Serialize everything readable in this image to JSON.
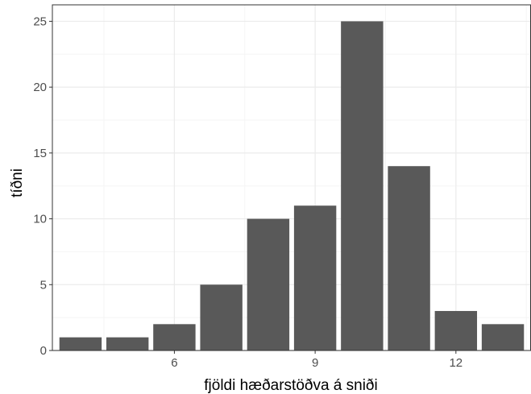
{
  "chart_data": {
    "type": "bar",
    "x": [
      4,
      5,
      6,
      7,
      8,
      9,
      10,
      11,
      12,
      13
    ],
    "values": [
      1,
      1,
      2,
      5,
      10,
      11,
      25,
      14,
      3,
      2
    ],
    "xlabel": "fjöldi hæðarstöðva á sniði",
    "ylabel": "tíðni",
    "xlim": [
      3.4,
      13.6
    ],
    "ylim": [
      0,
      26.25
    ],
    "xticks": [
      6,
      9,
      12
    ],
    "xtick_labels": [
      "6",
      "9",
      "12"
    ],
    "yticks": [
      0,
      5,
      10,
      15,
      20,
      25
    ],
    "ytick_labels": [
      "0",
      "5",
      "10",
      "15",
      "20",
      "25"
    ],
    "grid": true,
    "legend": "none",
    "colors": {
      "bar": "#595959",
      "grid_major": "#ebebeb",
      "grid_minor": "#f5f5f5",
      "panel_border": "#333333",
      "tick_text": "#4d4d4d",
      "title_text": "#000000"
    }
  }
}
